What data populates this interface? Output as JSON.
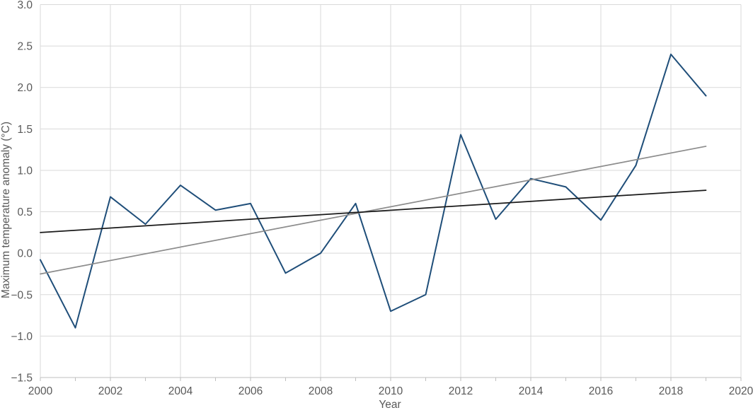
{
  "chart_data": {
    "type": "line",
    "title": "",
    "xlabel": "Year",
    "ylabel": "Maximum temperature anomaly (°C)",
    "xlim": [
      2000,
      2020
    ],
    "ylim": [
      -1.5,
      3.0
    ],
    "grid": {
      "horizontal_step": 0.5,
      "vertical_step_years": 2,
      "show": true
    },
    "legend_position": "none",
    "x": [
      2000,
      2001,
      2002,
      2003,
      2004,
      2005,
      2006,
      2007,
      2008,
      2009,
      2010,
      2011,
      2012,
      2013,
      2014,
      2015,
      2016,
      2017,
      2018,
      2019
    ],
    "series": [
      {
        "name": "max-temperature-anomaly",
        "kind": "data",
        "color": "#1f4e79",
        "stroke_width": 2,
        "values": [
          -0.08,
          -0.9,
          0.68,
          0.35,
          0.82,
          0.52,
          0.6,
          -0.24,
          0.0,
          0.6,
          -0.7,
          -0.5,
          1.43,
          0.41,
          0.9,
          0.8,
          0.4,
          1.06,
          2.4,
          1.9
        ]
      },
      {
        "name": "linear-trend-gray",
        "kind": "trendline",
        "color": "#8c8c8c",
        "stroke_width": 1.75,
        "x": [
          2000,
          2019
        ],
        "values": [
          -0.25,
          1.29
        ]
      },
      {
        "name": "reference-trend-black",
        "kind": "trendline",
        "color": "#1a1a1a",
        "stroke_width": 1.75,
        "x": [
          2000,
          2019
        ],
        "values": [
          0.25,
          0.76
        ]
      }
    ],
    "y_tick_values": [
      3.0,
      2.5,
      2.0,
      1.5,
      1.0,
      0.5,
      0.0,
      -0.5,
      -1.0,
      -1.5
    ],
    "y_tick_labels": [
      "3.0",
      "2.5",
      "2.0",
      "1.5",
      "1.0",
      "0.5",
      "0.0",
      "−0.5",
      "−1.0",
      "−1.5"
    ],
    "x_tick_label_years": [
      2000,
      2002,
      2004,
      2006,
      2008,
      2010,
      2012,
      2014,
      2016,
      2018,
      2020
    ],
    "x_minor_tick_every_year": true,
    "colors": {
      "series": "#1f4e79",
      "trend_gray": "#8c8c8c",
      "trend_black": "#1a1a1a",
      "gridline": "#d9d9d9",
      "axis": "#bfbfbf",
      "text": "#595959",
      "background": "#ffffff"
    }
  }
}
